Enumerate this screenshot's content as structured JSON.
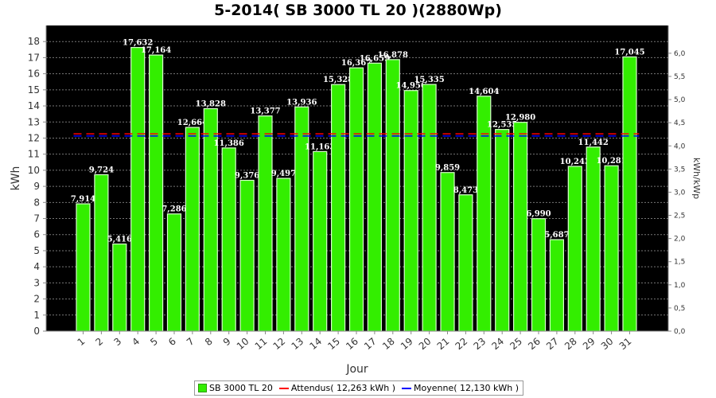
{
  "chart_data": {
    "type": "bar",
    "title": "5-2014( SB 3000 TL 20 )(2880Wp)",
    "xlabel": "Jour",
    "ylabel": "kWh",
    "y2label": "kWh/kWp",
    "ylim": [
      0,
      19
    ],
    "y2lim": [
      0,
      6.6
    ],
    "yticks": [
      "0",
      "1",
      "2",
      "3",
      "4",
      "5",
      "6",
      "7",
      "8",
      "9",
      "10",
      "11",
      "12",
      "13",
      "14",
      "15",
      "16",
      "17",
      "18"
    ],
    "y2ticks": [
      "0,0",
      "0,5",
      "1,0",
      "1,5",
      "2,0",
      "2,5",
      "3,0",
      "3,5",
      "4,0",
      "4,5",
      "5,0",
      "5,5",
      "6,0"
    ],
    "categories": [
      "1",
      "2",
      "3",
      "4",
      "5",
      "6",
      "7",
      "8",
      "9",
      "10",
      "11",
      "12",
      "13",
      "14",
      "15",
      "16",
      "17",
      "18",
      "19",
      "20",
      "21",
      "22",
      "23",
      "24",
      "25",
      "26",
      "27",
      "28",
      "29",
      "30",
      "31"
    ],
    "series": [
      {
        "name": "SB 3000 TL 20",
        "values": [
          7.914,
          9.724,
          5.416,
          17.632,
          17.164,
          7.286,
          12.664,
          13.828,
          11.386,
          9.376,
          13.377,
          9.497,
          13.936,
          11.163,
          15.328,
          16.367,
          16.659,
          16.878,
          14.956,
          15.335,
          9.859,
          8.473,
          14.604,
          12.535,
          12.98,
          6.99,
          5.687,
          10.243,
          11.442,
          10.281,
          17.045
        ],
        "labels": [
          "7,914",
          "9,724",
          "5,416",
          "17,632",
          "17,164",
          "7,286",
          "12,664",
          "13,828",
          "11,386",
          "9,376",
          "13,377",
          "9,497",
          "13,936",
          "11,163",
          "15,328",
          "16,367",
          "16,659",
          "16,878",
          "14,956",
          "15,335",
          "9,859",
          "8,473",
          "14,604",
          "12,535",
          "12,980",
          "6,990",
          "5,687",
          "10,243",
          "11,442",
          "10,281",
          "17,045"
        ],
        "color": "#33ee00"
      }
    ],
    "reference_lines": [
      {
        "name": "Attendus( 12,263 kWh )",
        "value": 12.263,
        "color": "#ff0000"
      },
      {
        "name": "Moyenne( 12,130 kWh )",
        "value": 12.13,
        "color": "#0000ff"
      }
    ],
    "grid": true,
    "background": "#000000",
    "legend_position": "bottom"
  }
}
